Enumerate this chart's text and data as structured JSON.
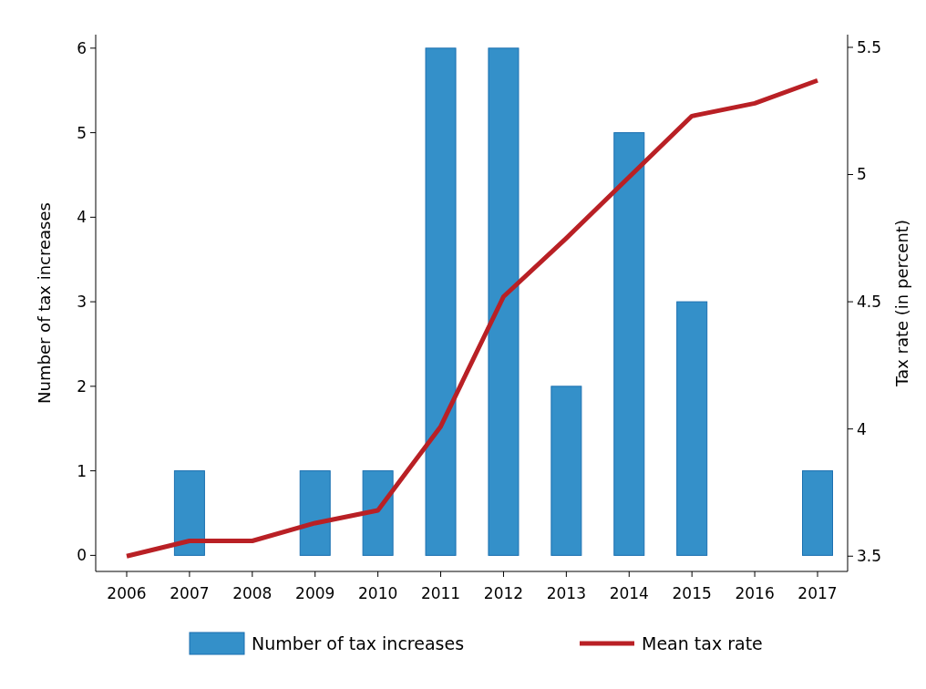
{
  "chart_data": {
    "type": "bar",
    "categories": [
      "2006",
      "2007",
      "2008",
      "2009",
      "2010",
      "2011",
      "2012",
      "2013",
      "2014",
      "2015",
      "2016",
      "2017"
    ],
    "series": [
      {
        "name": "Number of tax increases",
        "color": "#3490c9",
        "values": [
          0,
          1,
          0,
          1,
          1,
          6,
          6,
          2,
          5,
          3,
          0,
          1
        ]
      },
      {
        "name": "Mean tax rate",
        "type": "line",
        "axis": "y2",
        "color": "#b92025",
        "values": [
          3.5,
          3.56,
          3.56,
          3.63,
          3.68,
          4.01,
          4.52,
          4.75,
          4.99,
          5.23,
          5.28,
          5.37
        ]
      }
    ],
    "ylabel": "Number of tax increases",
    "y2label": "Tax rate (in percent)",
    "ylim": [
      -0.19,
      6.16
    ],
    "yticks": [
      0,
      1,
      2,
      3,
      4,
      5,
      6
    ],
    "y2lim": [
      3.44,
      5.55
    ],
    "y2ticks": [
      3.5,
      4,
      4.5,
      5,
      5.5
    ],
    "grid": false,
    "legend": "bottom"
  }
}
